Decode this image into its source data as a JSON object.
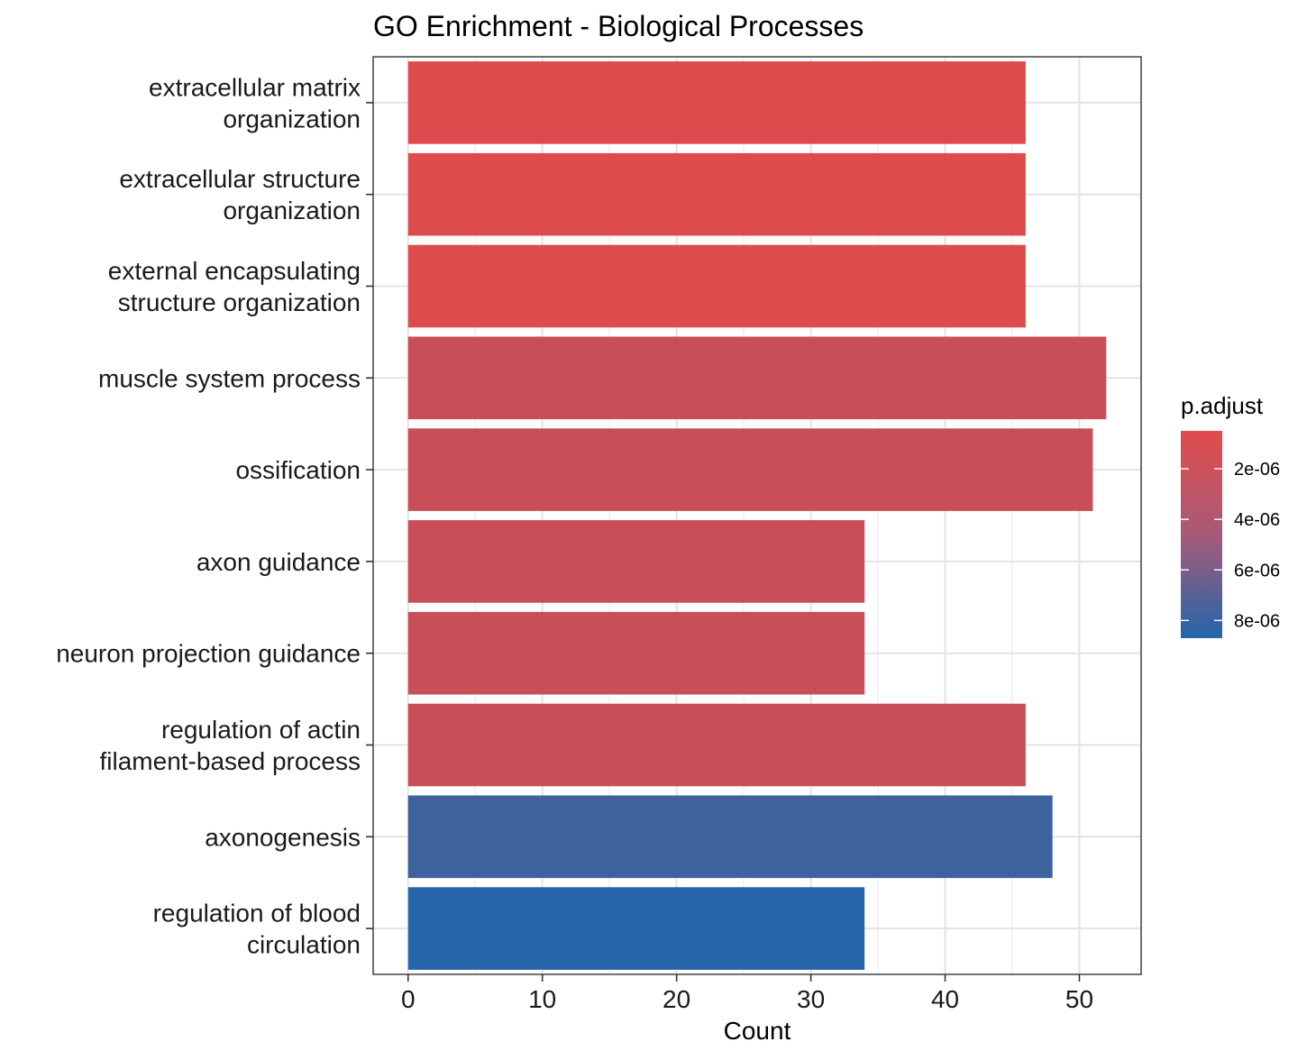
{
  "chart_data": {
    "type": "bar",
    "orientation": "horizontal",
    "title": "GO Enrichment - Biological Processes",
    "xlabel": "Count",
    "ylabel": "",
    "xlim": [
      -2.6,
      54.6
    ],
    "xticks": [
      0,
      10,
      20,
      30,
      40,
      50
    ],
    "grid": true,
    "categories": [
      [
        "extracellular matrix",
        "organization"
      ],
      [
        "extracellular structure",
        "organization"
      ],
      [
        "external encapsulating",
        "structure organization"
      ],
      [
        "muscle system process"
      ],
      [
        "ossification"
      ],
      [
        "axon guidance"
      ],
      [
        "neuron projection guidance"
      ],
      [
        "regulation of actin",
        "filament-based process"
      ],
      [
        "axonogenesis"
      ],
      [
        "regulation of blood",
        "circulation"
      ]
    ],
    "values": [
      46,
      46,
      46,
      52,
      51,
      34,
      34,
      46,
      48,
      34
    ],
    "p_adjust": [
      6e-07,
      6e-07,
      6e-07,
      1.5e-06,
      1.5e-06,
      1.5e-06,
      1.5e-06,
      1.5e-06,
      7.5e-06,
      8.5e-06
    ],
    "legend": {
      "title": "p.adjust",
      "position": "right",
      "ticks": [
        "2e-06",
        "4e-06",
        "6e-06",
        "8e-06"
      ],
      "tick_values": [
        2e-06,
        4e-06,
        6e-06,
        8e-06
      ],
      "range": [
        5e-07,
        8.7e-06
      ],
      "low_color": "#e04b4b",
      "high_color": "#2166ac"
    }
  }
}
